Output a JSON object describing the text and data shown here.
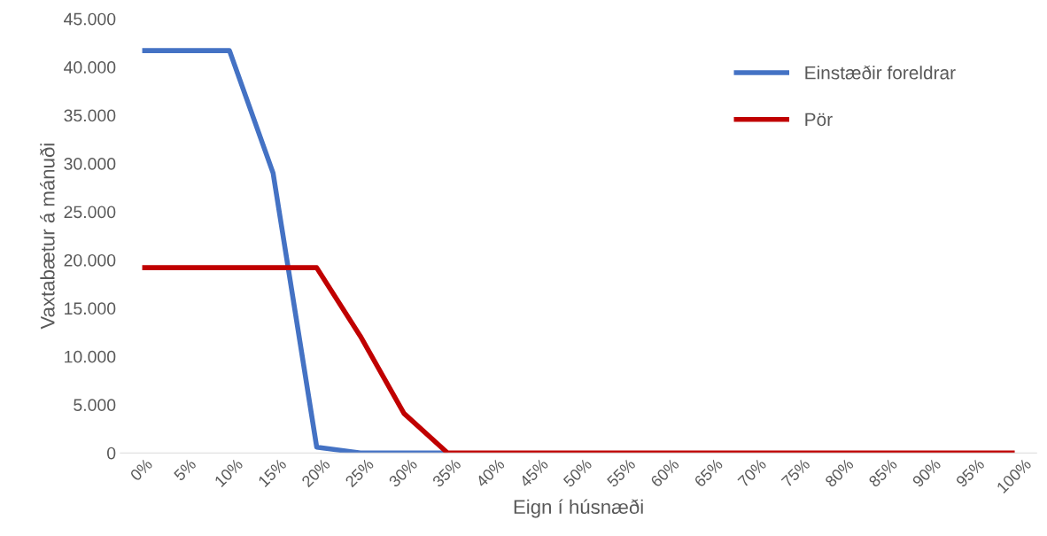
{
  "chart_data": {
    "type": "line",
    "xlabel": "Eign í húsnæði",
    "ylabel": "Vaxtabætur á mánuði",
    "categories": [
      "0%",
      "5%",
      "10%",
      "15%",
      "20%",
      "25%",
      "30%",
      "35%",
      "40%",
      "45%",
      "50%",
      "55%",
      "60%",
      "65%",
      "70%",
      "75%",
      "80%",
      "85%",
      "90%",
      "95%",
      "100%"
    ],
    "series": [
      {
        "name": "Einstæðir foreldrar",
        "color": "#4472c4",
        "values": [
          41700,
          41700,
          41700,
          29000,
          600,
          0,
          0,
          0,
          null,
          null,
          null,
          null,
          null,
          null,
          null,
          null,
          null,
          null,
          null,
          null,
          null
        ]
      },
      {
        "name": "Pör",
        "color": "#c00000",
        "values": [
          19200,
          19200,
          19200,
          19200,
          19200,
          12100,
          4100,
          0,
          0,
          0,
          0,
          0,
          0,
          0,
          0,
          0,
          0,
          0,
          0,
          0,
          0
        ]
      }
    ],
    "ylim": [
      0,
      45000
    ],
    "yticks": [
      0,
      {
        "value": 5000,
        "label": "5.000"
      },
      {
        "value": 10000,
        "label": "10.000"
      },
      {
        "value": 15000,
        "label": "15.000"
      },
      {
        "value": 20000,
        "label": "20.000"
      },
      {
        "value": 25000,
        "label": "25.000"
      },
      {
        "value": 30000,
        "label": "30.000"
      },
      {
        "value": 35000,
        "label": "35.000"
      },
      {
        "value": 40000,
        "label": "40.000"
      },
      {
        "value": 45000,
        "label": "45.000"
      }
    ],
    "grid": false,
    "legend": "top right",
    "marker": "none",
    "line_style": "solid"
  }
}
